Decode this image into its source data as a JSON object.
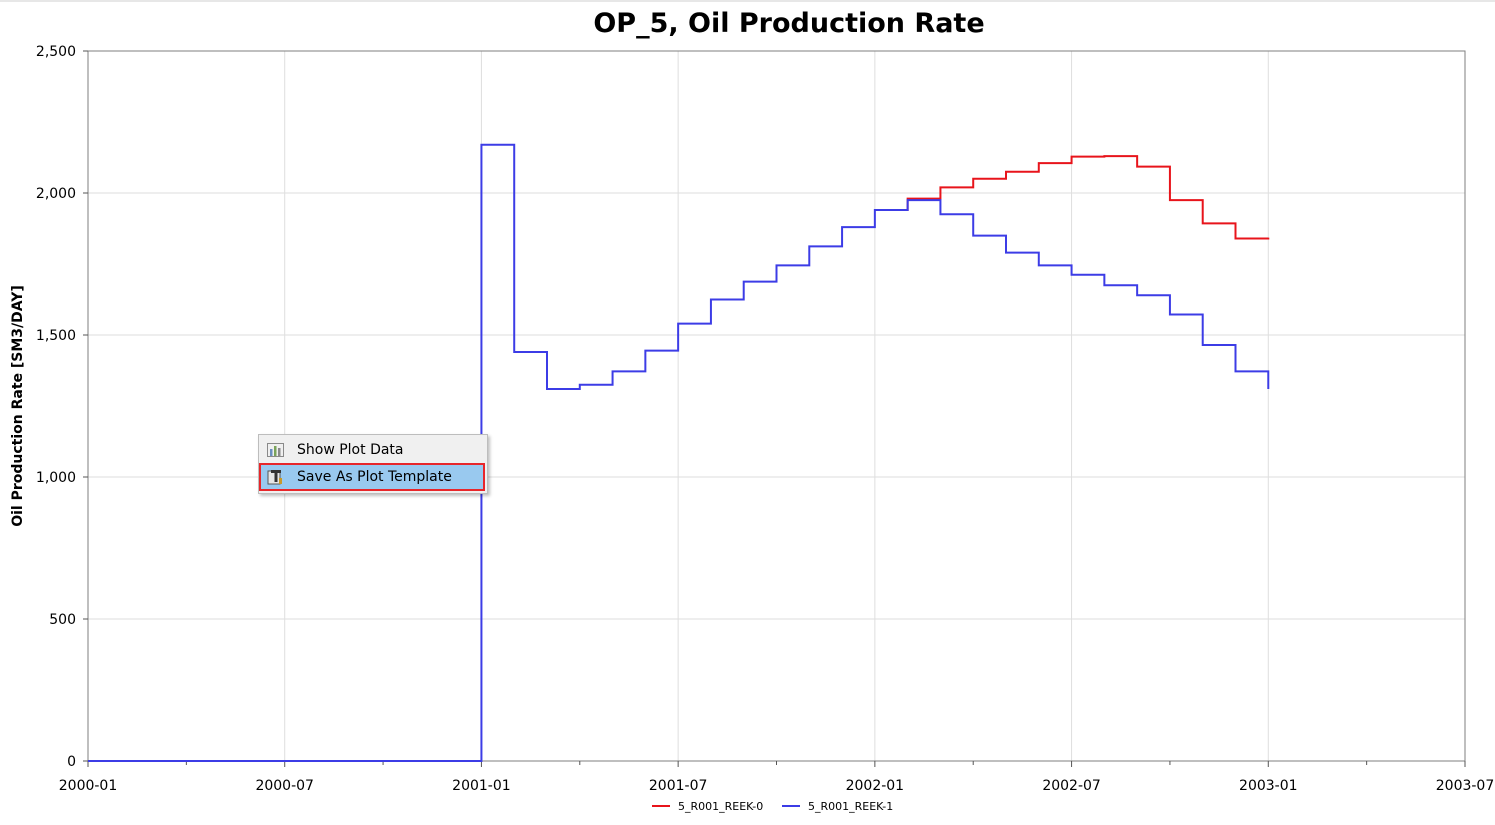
{
  "chart_data": {
    "type": "line",
    "title": "OP_5, Oil Production Rate",
    "ylabel": "Oil Production Rate [SM3/DAY]",
    "xlabel": "",
    "x_range": [
      "2000-01",
      "2003-07"
    ],
    "ylim": [
      0,
      2500
    ],
    "yticks": [
      0,
      500,
      1000,
      1500,
      2000,
      2500
    ],
    "ytick_labels": [
      "0",
      "500",
      "1,000",
      "1,500",
      "2,000",
      "2,500"
    ],
    "xtick_labels": [
      "2000-01",
      "2000-07",
      "2001-01",
      "2001-07",
      "2002-01",
      "2002-07",
      "2003-01",
      "2003-07"
    ],
    "grid": true,
    "legend_position": "bottom",
    "series": [
      {
        "name": "5_R001_REEK-0",
        "color": "#e8141b",
        "x": [
          "2002-01",
          "2002-02",
          "2002-03",
          "2002-04",
          "2002-05",
          "2002-06",
          "2002-07",
          "2002-08",
          "2002-09",
          "2002-10",
          "2002-11",
          "2002-12",
          "2003-01"
        ],
        "y": [
          1940,
          1980,
          2020,
          2050,
          2075,
          2105,
          2128,
          2130,
          2093,
          1975,
          1893,
          1840,
          1843
        ]
      },
      {
        "name": "5_R001_REEK-1",
        "color": "#3c3ce6",
        "x": [
          "2000-01",
          "2001-01",
          "2001-02",
          "2001-03",
          "2001-04",
          "2001-05",
          "2001-06",
          "2001-07",
          "2001-08",
          "2001-09",
          "2001-10",
          "2001-11",
          "2001-12",
          "2002-01",
          "2002-02",
          "2002-03",
          "2002-04",
          "2002-05",
          "2002-06",
          "2002-07",
          "2002-08",
          "2002-09",
          "2002-10",
          "2002-11",
          "2002-12",
          "2003-01"
        ],
        "y": [
          0,
          2170,
          1440,
          1310,
          1325,
          1372,
          1445,
          1540,
          1625,
          1688,
          1745,
          1812,
          1880,
          1940,
          1975,
          1925,
          1850,
          1790,
          1745,
          1712,
          1675,
          1640,
          1572,
          1465,
          1372,
          1310
        ]
      }
    ]
  },
  "context_menu": {
    "items": [
      {
        "label": "Show Plot Data",
        "icon": "bar-chart-icon"
      },
      {
        "label": "Save As Plot Template",
        "icon": "template-icon",
        "highlighted": true
      }
    ]
  }
}
